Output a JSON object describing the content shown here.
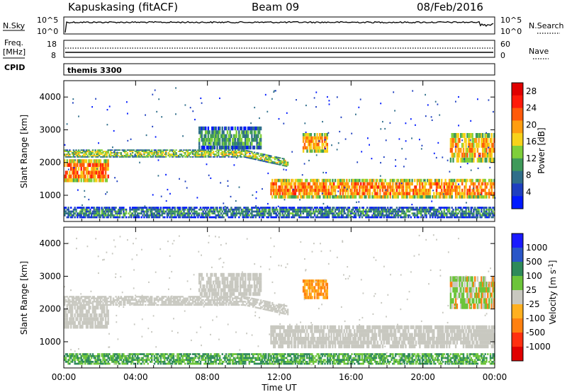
{
  "header": {
    "title": "Kapuskasing (fitACF)",
    "beam": "Beam 09",
    "date": "08/Feb/2016"
  },
  "strips": {
    "nsky_label": "N.Sky",
    "nsearch_label": "N.Search",
    "nsky_ticks": [
      "10^5",
      "10^0"
    ],
    "nsearch_ticks": [
      "10^5",
      "10^0"
    ],
    "freq_label_line1": "Freq.",
    "freq_label_line2": "[MHz]",
    "freq_ticks": [
      "18",
      "8"
    ],
    "nave_label": "Nave",
    "nave_ticks": [
      "60",
      "0"
    ],
    "cpid_label": "CPID",
    "cpid_value": "themis 3300"
  },
  "colors": {
    "power": [
      "#0019ff",
      "#1e3fc0",
      "#2f6e8a",
      "#3f9a5a",
      "#7fcf3a",
      "#f7d21a",
      "#ff9d10",
      "#ff5a0a",
      "#ff1a0a",
      "#e00000"
    ],
    "velocity": [
      "#1a1aff",
      "#2a56c8",
      "#2e8a5a",
      "#6cc43a",
      "#c8c8c0",
      "#ffb020",
      "#ff8010",
      "#ff3010",
      "#e00000"
    ],
    "ground": "#c8c8c0"
  },
  "chart_data": [
    {
      "type": "heatmap",
      "name": "power",
      "x_tick_labels": [
        "00:00",
        "04:00",
        "08:00",
        "12:00",
        "16:00",
        "20:00",
        "00:00"
      ],
      "x_ticks_hours": [
        0,
        4,
        8,
        12,
        16,
        20,
        24
      ],
      "xlabel": "Time UT",
      "ylabel": "Slant Range [km]",
      "ylim": [
        200,
        4500
      ],
      "y_ticks": [
        1000,
        2000,
        3000,
        4000
      ],
      "colorbar_label": "Power [dB]",
      "colorbar_ticks": [
        "4",
        "8",
        "12",
        "16",
        "20",
        "24",
        "28"
      ],
      "colorbar_range": [
        0,
        30
      ],
      "bands": [
        {
          "t_start": 0.0,
          "t_end": 12.5,
          "r_low": 2150,
          "r_high": 2400,
          "level": 14
        },
        {
          "t_start": 0.0,
          "t_end": 2.5,
          "r_low": 1400,
          "r_high": 2100,
          "level": 22
        },
        {
          "t_start": 11.5,
          "t_end": 24.0,
          "r_low": 900,
          "r_high": 1500,
          "level": 21
        },
        {
          "t_start": 7.5,
          "t_end": 11.0,
          "r_low": 2400,
          "r_high": 3100,
          "level": 10
        },
        {
          "t_start": 13.3,
          "t_end": 14.7,
          "r_low": 2300,
          "r_high": 2900,
          "level": 20
        },
        {
          "t_start": 21.5,
          "t_end": 24.0,
          "r_low": 2000,
          "r_high": 2900,
          "level": 19
        },
        {
          "t_start": 0.0,
          "t_end": 24.0,
          "r_low": 300,
          "r_high": 650,
          "level": 8
        }
      ]
    },
    {
      "type": "heatmap",
      "name": "velocity",
      "x_tick_labels": [
        "00:00",
        "04:00",
        "08:00",
        "12:00",
        "16:00",
        "20:00",
        "00:00"
      ],
      "x_ticks_hours": [
        0,
        4,
        8,
        12,
        16,
        20,
        24
      ],
      "xlabel": "Time UT",
      "ylabel": "Slant Range [km]",
      "ylim": [
        200,
        4500
      ],
      "y_ticks": [
        1000,
        2000,
        3000,
        4000
      ],
      "colorbar_label": "Velocity [m s^-1]",
      "colorbar_ticks": [
        "1000",
        "500",
        "100",
        "25",
        "-25",
        "-100",
        "-500",
        "-1000"
      ],
      "bands": [
        {
          "t_start": 0.0,
          "t_end": 12.5,
          "r_low": 2100,
          "r_high": 2400,
          "class": "ground"
        },
        {
          "t_start": 0.0,
          "t_end": 2.5,
          "r_low": 1400,
          "r_high": 2100,
          "class": "ground"
        },
        {
          "t_start": 11.5,
          "t_end": 24.0,
          "r_low": 800,
          "r_high": 1500,
          "class": "ground"
        },
        {
          "t_start": 7.5,
          "t_end": 11.0,
          "r_low": 2400,
          "r_high": 3100,
          "class": "ground"
        },
        {
          "t_start": 13.3,
          "t_end": 14.7,
          "r_low": 2300,
          "r_high": 2900,
          "class": "negative"
        },
        {
          "t_start": 21.5,
          "t_end": 24.0,
          "r_low": 2000,
          "r_high": 3000,
          "class": "mixed"
        },
        {
          "t_start": 0.0,
          "t_end": 24.0,
          "r_low": 300,
          "r_high": 650,
          "class": "positive"
        }
      ]
    }
  ]
}
